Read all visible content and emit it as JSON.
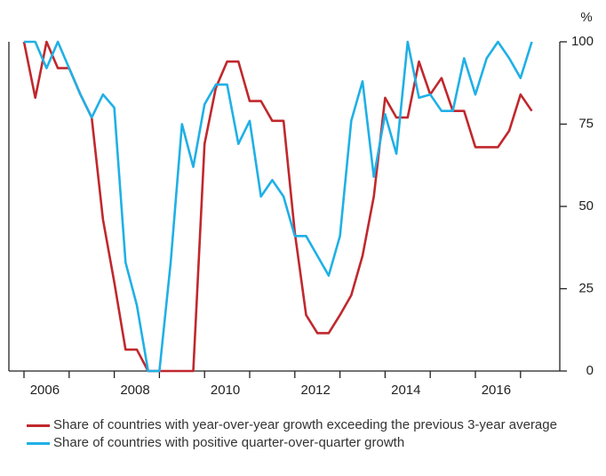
{
  "chart_data": {
    "type": "line",
    "y_unit": "%",
    "categories": [
      null,
      null,
      "2006",
      null,
      null,
      null,
      null,
      null,
      null,
      null,
      "2008",
      null,
      null,
      null,
      null,
      null,
      null,
      null,
      "2010",
      null,
      null,
      null,
      null,
      null,
      null,
      null,
      "2012",
      null,
      null,
      null,
      null,
      null,
      null,
      null,
      "2014",
      null,
      null,
      null,
      null,
      null,
      null,
      null,
      "2016",
      null,
      null,
      null
    ],
    "series": [
      {
        "name": "Share of countries with year-over-year growth exceeding the previous 3-year average",
        "color": "#c0282d",
        "values": [
          100,
          83,
          100,
          92,
          92,
          84,
          77,
          46,
          27,
          6.5,
          6.5,
          0,
          0,
          0,
          0,
          0,
          69,
          86,
          94,
          94,
          82,
          82,
          76,
          76,
          42,
          17,
          11.5,
          11.5,
          17,
          23,
          35,
          53,
          83,
          77,
          77,
          94,
          84,
          89,
          79,
          79,
          68,
          68,
          68,
          73,
          84,
          79
        ]
      },
      {
        "name": "Share of countries with positive quarter-over-quarter growth",
        "color": "#1fb0e6",
        "values": [
          100,
          100,
          92,
          100,
          92,
          84,
          77,
          84,
          80,
          33,
          20,
          0,
          0,
          33,
          75,
          62,
          81,
          87,
          87,
          69,
          76,
          53,
          58,
          53,
          41,
          41,
          35,
          29,
          41,
          76,
          88,
          59,
          78,
          66,
          100,
          83,
          84,
          79,
          79,
          95,
          84,
          95,
          100,
          95,
          89,
          100
        ]
      }
    ],
    "ylim": [
      0,
      100
    ],
    "yticks": [
      0,
      25,
      50,
      75,
      100
    ],
    "y_axis_side": "right",
    "grid": false
  }
}
